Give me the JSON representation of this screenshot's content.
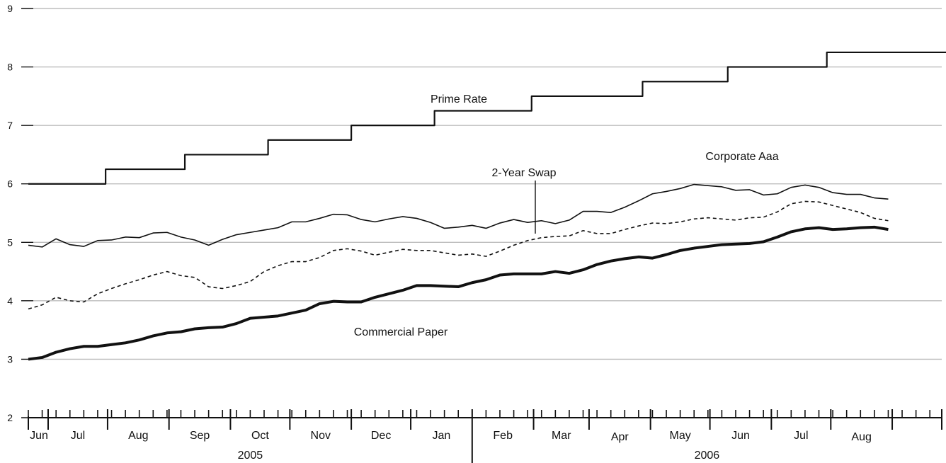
{
  "chart_data": {
    "type": "line",
    "title": "",
    "xlabel": "",
    "ylabel": "",
    "ylim": [
      2,
      9
    ],
    "yticks": [
      "2",
      "3",
      "4",
      "5",
      "6",
      "7",
      "8",
      "9"
    ],
    "grid": true,
    "month_labels": [
      "Jun",
      "Jul",
      "Aug",
      "Sep",
      "Oct",
      "Nov",
      "Dec",
      "Jan",
      "Feb",
      "Mar",
      "Apr",
      "May",
      "Jun",
      "Jul",
      "Aug"
    ],
    "year_labels": [
      "2005",
      "2006"
    ],
    "x_range": [
      "2005-05-22",
      "2006-08-26"
    ],
    "series": [
      {
        "name": "Prime Rate",
        "style": "step",
        "points": [
          [
            "2005-05-22",
            6.0
          ],
          [
            "2005-06-30",
            6.25
          ],
          [
            "2005-08-09",
            6.5
          ],
          [
            "2005-09-20",
            6.75
          ],
          [
            "2005-11-01",
            7.0
          ],
          [
            "2005-12-13",
            7.25
          ],
          [
            "2006-01-31",
            7.5
          ],
          [
            "2006-03-28",
            7.75
          ],
          [
            "2006-05-10",
            8.0
          ],
          [
            "2006-06-29",
            8.25
          ],
          [
            "2006-08-08",
            8.25
          ]
        ]
      },
      {
        "name": "Corporate Aaa",
        "style": "solid-thin",
        "points": [
          [
            "2005-05-22",
            4.95
          ],
          [
            "2005-05-29",
            4.92
          ],
          [
            "2005-06-05",
            5.06
          ],
          [
            "2005-06-12",
            4.96
          ],
          [
            "2005-06-19",
            4.93
          ],
          [
            "2005-06-26",
            5.03
          ],
          [
            "2005-07-03",
            5.04
          ],
          [
            "2005-07-10",
            5.09
          ],
          [
            "2005-07-17",
            5.08
          ],
          [
            "2005-07-24",
            5.16
          ],
          [
            "2005-07-31",
            5.17
          ],
          [
            "2005-08-07",
            5.09
          ],
          [
            "2005-08-14",
            5.04
          ],
          [
            "2005-08-21",
            4.95
          ],
          [
            "2005-08-28",
            5.05
          ],
          [
            "2005-09-04",
            5.13
          ],
          [
            "2005-09-11",
            5.17
          ],
          [
            "2005-09-18",
            5.21
          ],
          [
            "2005-09-25",
            5.25
          ],
          [
            "2005-10-02",
            5.35
          ],
          [
            "2005-10-09",
            5.35
          ],
          [
            "2005-10-16",
            5.41
          ],
          [
            "2005-10-23",
            5.48
          ],
          [
            "2005-10-30",
            5.47
          ],
          [
            "2005-11-06",
            5.39
          ],
          [
            "2005-11-13",
            5.35
          ],
          [
            "2005-11-20",
            5.4
          ],
          [
            "2005-11-27",
            5.44
          ],
          [
            "2005-12-04",
            5.41
          ],
          [
            "2005-12-11",
            5.34
          ],
          [
            "2005-12-18",
            5.24
          ],
          [
            "2005-12-25",
            5.26
          ],
          [
            "2006-01-01",
            5.29
          ],
          [
            "2006-01-08",
            5.24
          ],
          [
            "2006-01-15",
            5.33
          ],
          [
            "2006-01-22",
            5.39
          ],
          [
            "2006-01-29",
            5.34
          ],
          [
            "2006-02-05",
            5.37
          ],
          [
            "2006-02-12",
            5.32
          ],
          [
            "2006-02-19",
            5.38
          ],
          [
            "2006-02-26",
            5.53
          ],
          [
            "2006-03-05",
            5.53
          ],
          [
            "2006-03-12",
            5.51
          ],
          [
            "2006-03-19",
            5.6
          ],
          [
            "2006-03-26",
            5.71
          ],
          [
            "2006-04-02",
            5.83
          ],
          [
            "2006-04-09",
            5.87
          ],
          [
            "2006-04-16",
            5.92
          ],
          [
            "2006-04-23",
            5.99
          ],
          [
            "2006-04-30",
            5.97
          ],
          [
            "2006-05-07",
            5.95
          ],
          [
            "2006-05-14",
            5.89
          ],
          [
            "2006-05-21",
            5.9
          ],
          [
            "2006-05-28",
            5.81
          ],
          [
            "2006-06-04",
            5.83
          ],
          [
            "2006-06-11",
            5.94
          ],
          [
            "2006-06-18",
            5.98
          ],
          [
            "2006-06-25",
            5.94
          ],
          [
            "2006-07-02",
            5.85
          ],
          [
            "2006-07-09",
            5.82
          ],
          [
            "2006-07-16",
            5.82
          ],
          [
            "2006-07-23",
            5.76
          ],
          [
            "2006-07-30",
            5.74
          ]
        ]
      },
      {
        "name": "2-Year Swap",
        "style": "dashed",
        "points": [
          [
            "2005-05-22",
            3.86
          ],
          [
            "2005-05-29",
            3.93
          ],
          [
            "2005-06-05",
            4.06
          ],
          [
            "2005-06-12",
            4.0
          ],
          [
            "2005-06-19",
            3.98
          ],
          [
            "2005-06-26",
            4.12
          ],
          [
            "2005-07-03",
            4.21
          ],
          [
            "2005-07-10",
            4.29
          ],
          [
            "2005-07-17",
            4.36
          ],
          [
            "2005-07-24",
            4.44
          ],
          [
            "2005-07-31",
            4.5
          ],
          [
            "2005-08-07",
            4.43
          ],
          [
            "2005-08-14",
            4.4
          ],
          [
            "2005-08-21",
            4.24
          ],
          [
            "2005-08-28",
            4.21
          ],
          [
            "2005-09-04",
            4.26
          ],
          [
            "2005-09-11",
            4.33
          ],
          [
            "2005-09-18",
            4.5
          ],
          [
            "2005-09-25",
            4.6
          ],
          [
            "2005-10-02",
            4.67
          ],
          [
            "2005-10-09",
            4.67
          ],
          [
            "2005-10-16",
            4.74
          ],
          [
            "2005-10-23",
            4.86
          ],
          [
            "2005-10-30",
            4.89
          ],
          [
            "2005-11-06",
            4.85
          ],
          [
            "2005-11-13",
            4.78
          ],
          [
            "2005-11-20",
            4.83
          ],
          [
            "2005-11-27",
            4.88
          ],
          [
            "2005-12-04",
            4.86
          ],
          [
            "2005-12-11",
            4.86
          ],
          [
            "2005-12-18",
            4.82
          ],
          [
            "2005-12-25",
            4.78
          ],
          [
            "2006-01-01",
            4.8
          ],
          [
            "2006-01-08",
            4.76
          ],
          [
            "2006-01-15",
            4.85
          ],
          [
            "2006-01-22",
            4.95
          ],
          [
            "2006-01-29",
            5.03
          ],
          [
            "2006-02-05",
            5.08
          ],
          [
            "2006-02-12",
            5.1
          ],
          [
            "2006-02-19",
            5.11
          ],
          [
            "2006-02-26",
            5.2
          ],
          [
            "2006-03-05",
            5.15
          ],
          [
            "2006-03-12",
            5.15
          ],
          [
            "2006-03-19",
            5.22
          ],
          [
            "2006-03-26",
            5.28
          ],
          [
            "2006-04-02",
            5.33
          ],
          [
            "2006-04-09",
            5.32
          ],
          [
            "2006-04-16",
            5.35
          ],
          [
            "2006-04-23",
            5.4
          ],
          [
            "2006-04-30",
            5.42
          ],
          [
            "2006-05-07",
            5.4
          ],
          [
            "2006-05-14",
            5.38
          ],
          [
            "2006-05-21",
            5.42
          ],
          [
            "2006-05-28",
            5.43
          ],
          [
            "2006-06-04",
            5.52
          ],
          [
            "2006-06-11",
            5.66
          ],
          [
            "2006-06-18",
            5.7
          ],
          [
            "2006-06-25",
            5.69
          ],
          [
            "2006-07-02",
            5.63
          ],
          [
            "2006-07-09",
            5.57
          ],
          [
            "2006-07-16",
            5.51
          ],
          [
            "2006-07-23",
            5.41
          ],
          [
            "2006-07-30",
            5.37
          ]
        ]
      },
      {
        "name": "Commercial Paper",
        "style": "solid-thick",
        "points": [
          [
            "2005-05-22",
            3.0
          ],
          [
            "2005-05-29",
            3.03
          ],
          [
            "2005-06-05",
            3.12
          ],
          [
            "2005-06-12",
            3.18
          ],
          [
            "2005-06-19",
            3.22
          ],
          [
            "2005-06-26",
            3.22
          ],
          [
            "2005-07-03",
            3.25
          ],
          [
            "2005-07-10",
            3.28
          ],
          [
            "2005-07-17",
            3.33
          ],
          [
            "2005-07-24",
            3.4
          ],
          [
            "2005-07-31",
            3.45
          ],
          [
            "2005-08-07",
            3.47
          ],
          [
            "2005-08-14",
            3.52
          ],
          [
            "2005-08-21",
            3.54
          ],
          [
            "2005-08-28",
            3.55
          ],
          [
            "2005-09-04",
            3.61
          ],
          [
            "2005-09-11",
            3.7
          ],
          [
            "2005-09-18",
            3.72
          ],
          [
            "2005-09-25",
            3.74
          ],
          [
            "2005-10-02",
            3.79
          ],
          [
            "2005-10-09",
            3.84
          ],
          [
            "2005-10-16",
            3.95
          ],
          [
            "2005-10-23",
            3.99
          ],
          [
            "2005-10-30",
            3.98
          ],
          [
            "2005-11-06",
            3.98
          ],
          [
            "2005-11-13",
            4.06
          ],
          [
            "2005-11-20",
            4.12
          ],
          [
            "2005-11-27",
            4.18
          ],
          [
            "2005-12-04",
            4.26
          ],
          [
            "2005-12-11",
            4.26
          ],
          [
            "2005-12-18",
            4.25
          ],
          [
            "2005-12-25",
            4.24
          ],
          [
            "2006-01-01",
            4.31
          ],
          [
            "2006-01-08",
            4.36
          ],
          [
            "2006-01-15",
            4.44
          ],
          [
            "2006-01-22",
            4.46
          ],
          [
            "2006-01-29",
            4.46
          ],
          [
            "2006-02-05",
            4.46
          ],
          [
            "2006-02-12",
            4.5
          ],
          [
            "2006-02-19",
            4.47
          ],
          [
            "2006-02-26",
            4.53
          ],
          [
            "2006-03-05",
            4.62
          ],
          [
            "2006-03-12",
            4.68
          ],
          [
            "2006-03-19",
            4.72
          ],
          [
            "2006-03-26",
            4.75
          ],
          [
            "2006-04-02",
            4.73
          ],
          [
            "2006-04-09",
            4.79
          ],
          [
            "2006-04-16",
            4.86
          ],
          [
            "2006-04-23",
            4.9
          ],
          [
            "2006-04-30",
            4.93
          ],
          [
            "2006-05-07",
            4.96
          ],
          [
            "2006-05-14",
            4.97
          ],
          [
            "2006-05-21",
            4.98
          ],
          [
            "2006-05-28",
            5.01
          ],
          [
            "2006-06-04",
            5.09
          ],
          [
            "2006-06-11",
            5.18
          ],
          [
            "2006-06-18",
            5.23
          ],
          [
            "2006-06-25",
            5.25
          ],
          [
            "2006-07-02",
            5.22
          ],
          [
            "2006-07-09",
            5.23
          ],
          [
            "2006-07-16",
            5.25
          ],
          [
            "2006-07-23",
            5.26
          ],
          [
            "2006-07-30",
            5.22
          ]
        ]
      }
    ]
  }
}
